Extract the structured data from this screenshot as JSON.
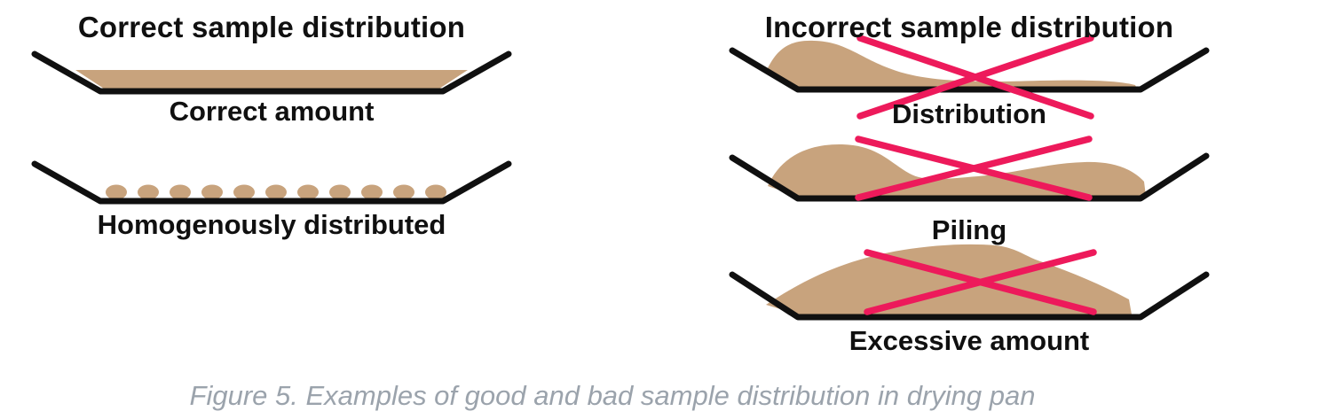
{
  "figure": {
    "caption": "Figure 5. Examples of good and bad sample distribution in drying pan",
    "colors": {
      "sample_tan": "#C8A37D",
      "pan_black": "#101010",
      "cross_red": "#ED1A5B",
      "caption_gray": "#9BA3AC"
    },
    "correct_column": {
      "heading": "Correct sample distribution",
      "panels": [
        {
          "label": "Correct amount",
          "sample": "flat-even-layer",
          "crossed_out": false
        },
        {
          "label": "Homogenously distributed",
          "sample": "row-of-granules",
          "dot_count": 11,
          "crossed_out": false
        }
      ]
    },
    "incorrect_column": {
      "heading": "Incorrect sample distribution",
      "panels": [
        {
          "label": "Distribution",
          "sample": "heap-on-left-side",
          "crossed_out": true
        },
        {
          "label": "Piling",
          "sample": "two-uneven-piles",
          "crossed_out": true
        },
        {
          "label": "Excessive amount",
          "sample": "overfilled-mound",
          "crossed_out": true
        }
      ]
    }
  }
}
